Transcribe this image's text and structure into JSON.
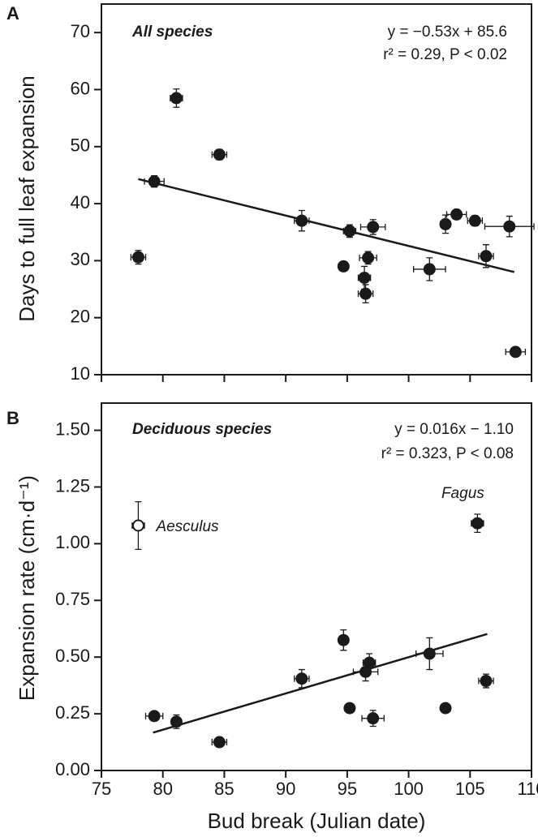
{
  "chart_data": [
    {
      "type": "scatter",
      "panel": "A",
      "annotation": "All species",
      "equation": "y = −0.53x + 85.6",
      "stats": "r² = 0.29, P < 0.02",
      "ylabel": "Days to full leaf expansion",
      "xlim": [
        75,
        110
      ],
      "xticks": [
        75,
        80,
        85,
        90,
        95,
        100,
        105,
        110
      ],
      "ylim": [
        10,
        75
      ],
      "yticks": [
        10,
        20,
        30,
        40,
        50,
        60,
        70
      ],
      "color": "#1a1a1a",
      "x": [
        78.0,
        79.3,
        81.1,
        84.6,
        91.3,
        94.7,
        95.2,
        96.4,
        96.5,
        96.7,
        97.1,
        101.7,
        103.0,
        103.9,
        105.4,
        106.3,
        108.2,
        108.7
      ],
      "values": [
        30.6,
        43.9,
        58.5,
        48.6,
        37.0,
        29.0,
        35.2,
        27.0,
        24.2,
        30.5,
        35.9,
        28.5,
        36.4,
        38.1,
        37.0,
        30.8,
        36.0,
        14.0
      ],
      "xerr": [
        0.6,
        0.8,
        0.5,
        0.6,
        0.6,
        0.3,
        0.5,
        0.5,
        0.6,
        0.7,
        1.0,
        1.3,
        0.4,
        0.8,
        0.6,
        0.6,
        2.0,
        0.8
      ],
      "yerr": [
        1.2,
        1.0,
        1.6,
        0.9,
        1.8,
        0.5,
        1.1,
        2.0,
        1.6,
        1.1,
        1.3,
        2.0,
        1.6,
        0.6,
        0.9,
        2.0,
        1.8,
        0.7
      ],
      "fit_line": {
        "x": [
          78.0,
          108.6
        ],
        "y": [
          44.3,
          28.0
        ]
      }
    },
    {
      "type": "scatter",
      "panel": "B",
      "annotation": "Deciduous species",
      "equation": "y = 0.016x − 1.10",
      "stats": "r² = 0.323, P < 0.08",
      "ylabel": "Expansion rate (cm·d⁻¹)",
      "xlabel": "Bud break (Julian date)",
      "xlim": [
        75,
        110
      ],
      "xticks": [
        75,
        80,
        85,
        90,
        95,
        100,
        105,
        110
      ],
      "ylim": [
        0,
        1.62
      ],
      "yticks": [
        {
          "value": 0,
          "label": "0.00"
        },
        {
          "value": 0.25,
          "label": "0.25"
        },
        {
          "value": 0.5,
          "label": "0.50"
        },
        {
          "value": 0.75,
          "label": "0.75"
        },
        {
          "value": 1,
          "label": "1.00"
        },
        {
          "value": 1.25,
          "label": "1.25"
        },
        {
          "value": 1.5,
          "label": "1.50"
        }
      ],
      "color": "#1a1a1a",
      "x": [
        79.3,
        81.1,
        84.6,
        91.3,
        94.7,
        95.2,
        96.5,
        96.8,
        97.1,
        101.7,
        103.0,
        105.6,
        106.3,
        78.0
      ],
      "values": [
        0.24,
        0.215,
        0.125,
        0.405,
        0.575,
        0.275,
        0.435,
        0.475,
        0.23,
        0.515,
        0.275,
        1.09,
        0.395,
        1.08
      ],
      "xerr": [
        0.7,
        0.4,
        0.6,
        0.6,
        0.3,
        0.3,
        1.0,
        0.5,
        0.9,
        1.1,
        0.3,
        0.5,
        0.6,
        0.5
      ],
      "yerr": [
        0.015,
        0.03,
        0.02,
        0.04,
        0.045,
        0.02,
        0.04,
        0.04,
        0.035,
        0.07,
        0.015,
        0.04,
        0.03,
        0.105
      ],
      "filled": [
        true,
        true,
        true,
        true,
        true,
        true,
        true,
        true,
        true,
        true,
        true,
        true,
        true,
        false
      ],
      "point_labels": [
        null,
        null,
        null,
        null,
        null,
        null,
        null,
        null,
        null,
        null,
        null,
        "Fagus",
        null,
        "Aesculus"
      ],
      "fit_line": {
        "x": [
          79.2,
          106.4
        ],
        "y": [
          0.167,
          0.602
        ]
      }
    }
  ]
}
